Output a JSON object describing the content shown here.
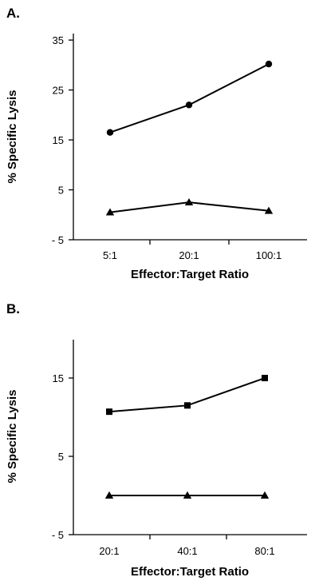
{
  "chart_data": [
    {
      "panel": "A.",
      "type": "line",
      "categories": [
        "5:1",
        "20:1",
        "100:1"
      ],
      "xlabel": "Effector:Target Ratio",
      "ylabel": "% Specific Lysis",
      "ylim": [
        -5,
        35
      ],
      "yticks": [
        "35",
        "25",
        "15",
        "5",
        "- 5"
      ],
      "ytick_values": [
        35,
        25,
        15,
        5,
        -5
      ],
      "series": [
        {
          "marker": "circle",
          "values": [
            16.5,
            22,
            30.2
          ]
        },
        {
          "marker": "triangle",
          "values": [
            0.5,
            2.5,
            0.8
          ]
        }
      ]
    },
    {
      "panel": "B.",
      "type": "line",
      "categories": [
        "20:1",
        "40:1",
        "80:1"
      ],
      "xlabel": "Effector:Target Ratio",
      "ylabel": "% Specific Lysis",
      "ylim": [
        -5,
        20
      ],
      "yticks": [
        "15",
        "5",
        "- 5"
      ],
      "ytick_values": [
        15,
        5,
        -5
      ],
      "series": [
        {
          "marker": "square",
          "values": [
            10.7,
            11.5,
            15
          ]
        },
        {
          "marker": "triangle",
          "values": [
            0,
            0,
            0
          ]
        }
      ]
    }
  ]
}
